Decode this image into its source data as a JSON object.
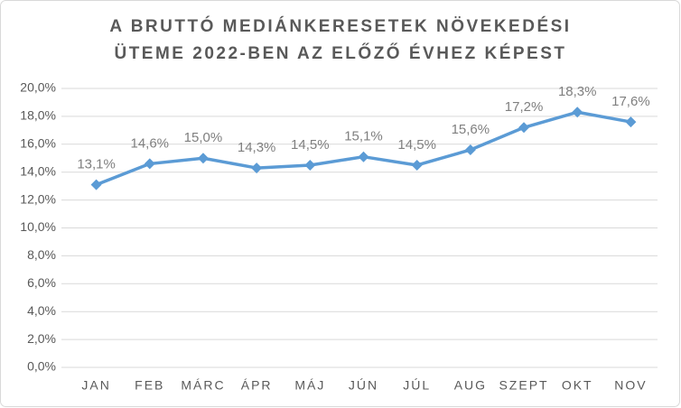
{
  "chart_data": {
    "type": "line",
    "title": [
      "A BRUTTÓ MEDIÁNKERESETEK NÖVEKEDÉSI",
      "ÜTEME 2022-BEN AZ ELŐZŐ ÉVHEZ KÉPEST"
    ],
    "categories": [
      "JAN",
      "FEB",
      "MÁRC",
      "ÁPR",
      "MÁJ",
      "JÚN",
      "JÚL",
      "AUG",
      "SZEPT",
      "OKT",
      "NOV"
    ],
    "series": [
      {
        "color": "#5b9bd5",
        "values": [
          13.1,
          14.6,
          15.0,
          14.3,
          14.5,
          15.1,
          14.5,
          15.6,
          17.2,
          18.3,
          17.6
        ],
        "value_labels": [
          "13,1%",
          "14,6%",
          "15,0%",
          "14,3%",
          "14,5%",
          "15,1%",
          "14,5%",
          "15,6%",
          "17,2%",
          "18,3%",
          "17,6%"
        ]
      }
    ],
    "ylim": [
      0,
      20
    ],
    "yticks": [
      {
        "value": 0,
        "label": "0,0%"
      },
      {
        "value": 2,
        "label": "2,0%"
      },
      {
        "value": 4,
        "label": "4,0%"
      },
      {
        "value": 6,
        "label": "6,0%"
      },
      {
        "value": 8,
        "label": "8,0%"
      },
      {
        "value": 10,
        "label": "10,0%"
      },
      {
        "value": 12,
        "label": "12,0%"
      },
      {
        "value": 14,
        "label": "14,0%"
      },
      {
        "value": 16,
        "label": "16,0%"
      },
      {
        "value": 18,
        "label": "18,0%"
      },
      {
        "value": 20,
        "label": "20,0%"
      }
    ],
    "grid": true
  }
}
